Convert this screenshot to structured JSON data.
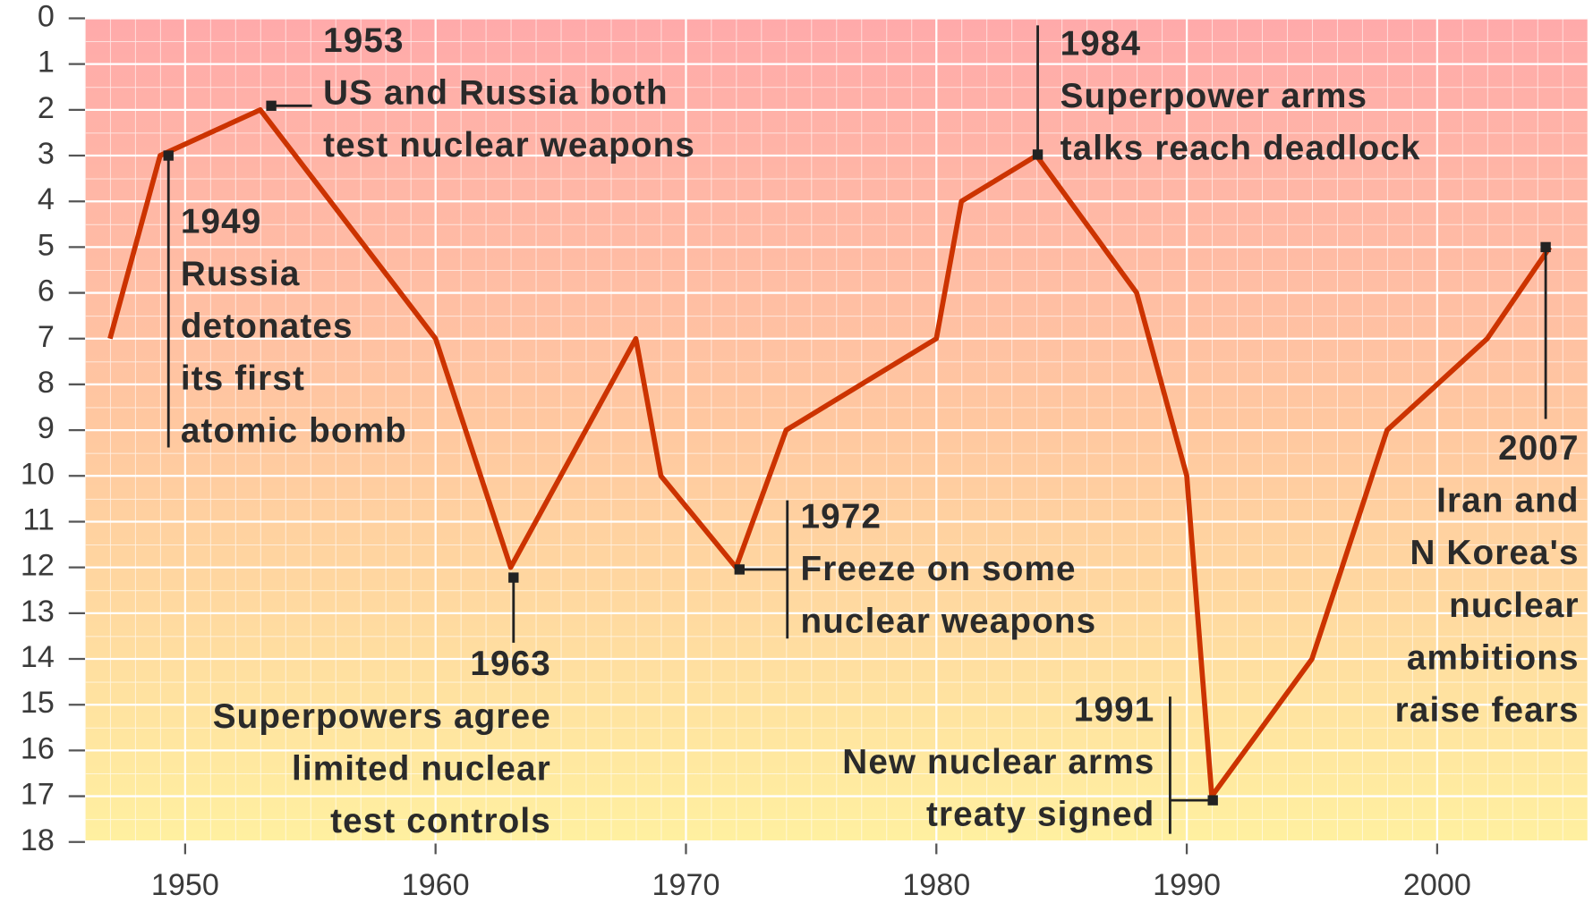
{
  "chart_data": {
    "type": "line",
    "x": [
      1947,
      1949,
      1953,
      1960,
      1963,
      1968,
      1969,
      1972,
      1974,
      1980,
      1981,
      1984,
      1988,
      1990,
      1991,
      1995,
      1998,
      2002,
      2004.5
    ],
    "series": [
      {
        "color": "#cc3300",
        "values": [
          7,
          3,
          2,
          7,
          12,
          7,
          10,
          12,
          9,
          7,
          4,
          3,
          6,
          10,
          17,
          14,
          9,
          7,
          5
        ]
      }
    ],
    "xlim": [
      1946,
      2006
    ],
    "xticks": [
      1950,
      1960,
      1970,
      1980,
      1990,
      2000
    ],
    "ylim": [
      18,
      0
    ],
    "yticks": [
      0,
      1,
      2,
      3,
      4,
      5,
      6,
      7,
      8,
      9,
      10,
      11,
      12,
      13,
      14,
      15,
      16,
      17,
      18
    ],
    "grid": true,
    "annotations": [
      {
        "year": "1953",
        "lines": [
          "US and Russia both",
          "test nuclear weapons"
        ]
      },
      {
        "year": "1949",
        "lines": [
          "Russia",
          "detonates",
          "its first",
          "atomic bomb"
        ]
      },
      {
        "year": "1963",
        "lines": [
          "Superpowers agree",
          "limited nuclear",
          "test controls"
        ]
      },
      {
        "year": "1972",
        "lines": [
          "Freeze on some",
          "nuclear weapons"
        ]
      },
      {
        "year": "1984",
        "lines": [
          "Superpower arms",
          "talks reach deadlock"
        ]
      },
      {
        "year": "1991",
        "lines": [
          "New nuclear arms",
          "treaty signed"
        ]
      },
      {
        "year": "2007",
        "lines": [
          "Iran and",
          "N Korea's",
          "nuclear",
          "ambitions",
          "raise fears"
        ]
      }
    ]
  }
}
